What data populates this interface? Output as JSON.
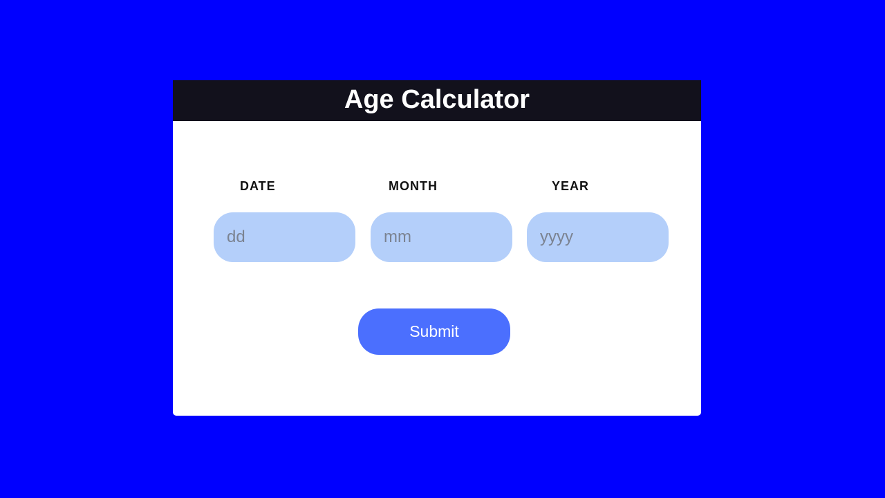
{
  "app": {
    "title": "Age Calculator"
  },
  "form": {
    "fields": [
      {
        "label": "DATE",
        "placeholder": "dd",
        "value": ""
      },
      {
        "label": "MONTH",
        "placeholder": "mm",
        "value": ""
      },
      {
        "label": "YEAR",
        "placeholder": "yyyy",
        "value": ""
      }
    ],
    "submit_label": "Submit"
  },
  "colors": {
    "background": "#0000ff",
    "header": "#12111c",
    "input": "#b4cffa",
    "button": "#4b6ffe"
  }
}
